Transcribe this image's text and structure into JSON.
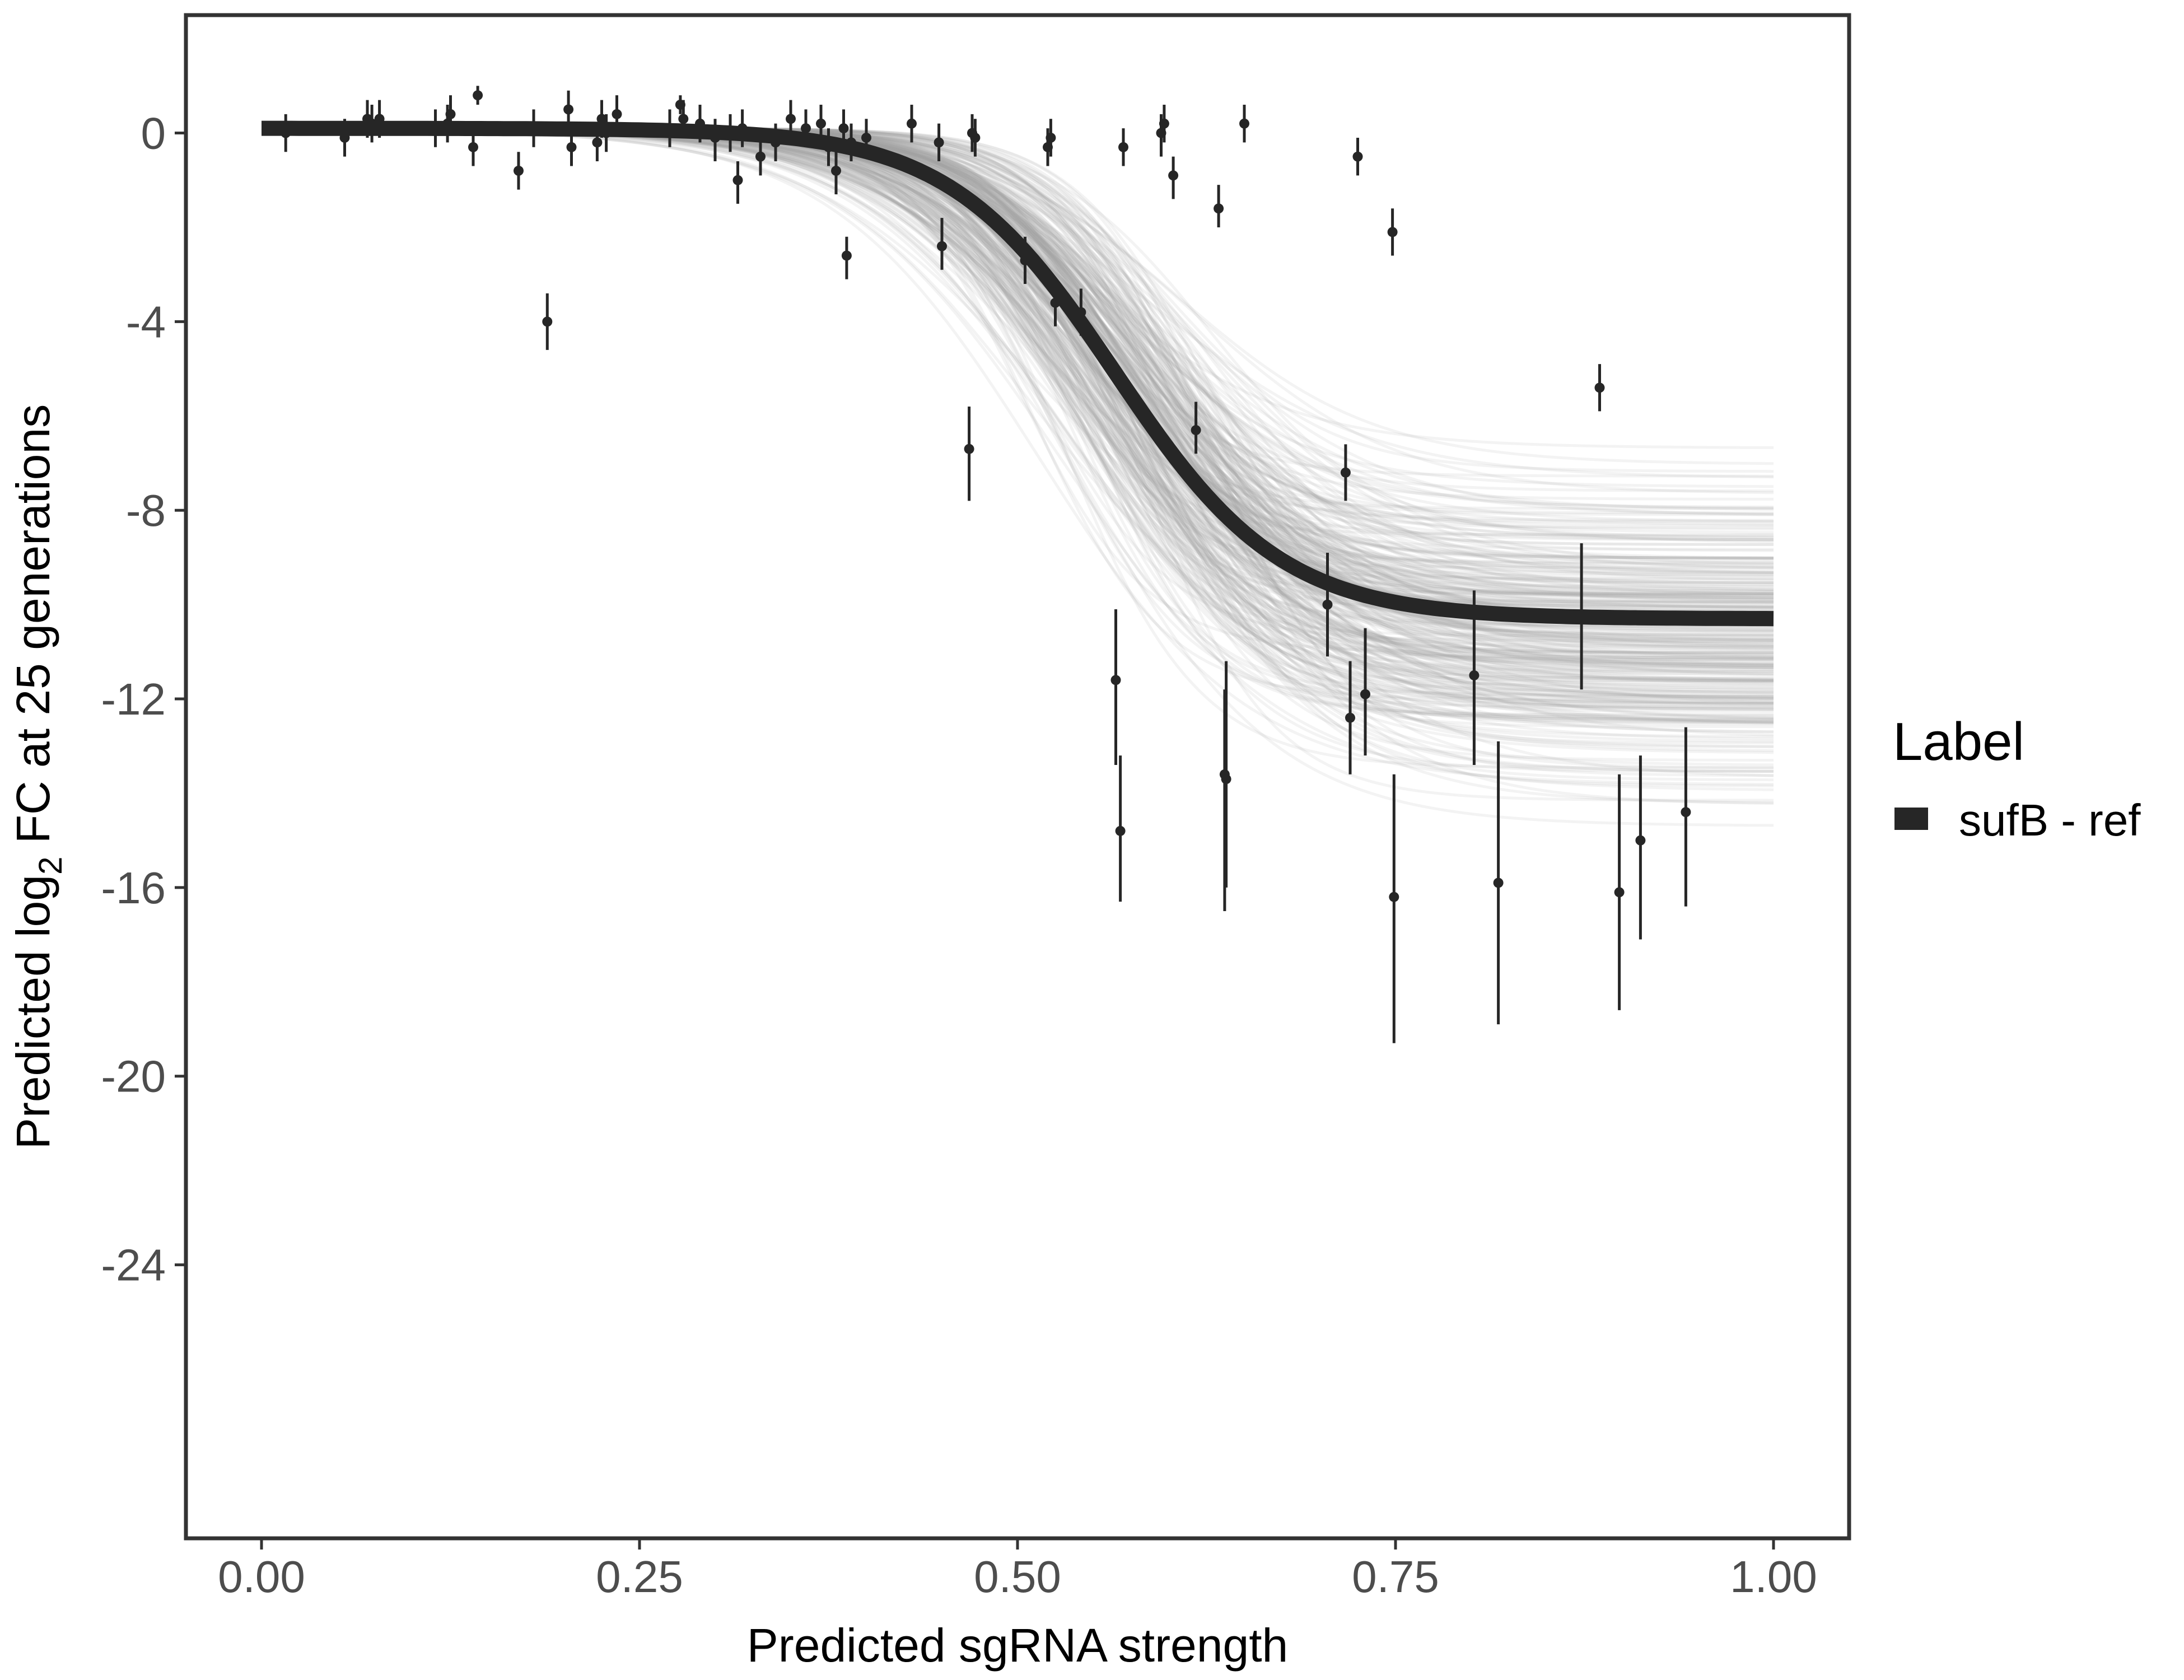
{
  "chart_data": {
    "type": "scatter",
    "title": "",
    "xlabel": "Predicted sgRNA strength",
    "ylabel": {
      "prefix": "Predicted  log",
      "subscript": "2",
      "suffix": " FC at 25 generations"
    },
    "xlim": [
      -0.05,
      1.05
    ],
    "ylim": [
      -29.8,
      2.5
    ],
    "x_ticks": [
      {
        "value": 0.0,
        "label": "0.00"
      },
      {
        "value": 0.25,
        "label": "0.25"
      },
      {
        "value": 0.5,
        "label": "0.50"
      },
      {
        "value": 0.75,
        "label": "0.75"
      },
      {
        "value": 1.0,
        "label": "1.00"
      }
    ],
    "y_ticks": [
      {
        "value": 0,
        "label": "0"
      },
      {
        "value": -4,
        "label": "-4"
      },
      {
        "value": -8,
        "label": "-8"
      },
      {
        "value": -12,
        "label": "-12"
      },
      {
        "value": -16,
        "label": "-16"
      },
      {
        "value": -20,
        "label": "-20"
      },
      {
        "value": -24,
        "label": "-24"
      }
    ],
    "grid": false,
    "legend": {
      "title": "Label",
      "placement": "right",
      "items": [
        {
          "label": "sufB - ref",
          "color": "#262626"
        }
      ]
    },
    "fit_curve": {
      "model": "logistic",
      "upper": 0.1,
      "lower": -10.3,
      "midpoint": 0.565,
      "scale": 0.055,
      "color": "#262626"
    },
    "posterior_draws": {
      "count": 320,
      "color": "#a6a6a6",
      "lower_range": [
        -15.3,
        -6.2
      ],
      "midpoint_range": [
        0.5,
        0.64
      ],
      "scale_range": [
        0.04,
        0.075
      ]
    },
    "points": [
      {
        "x": 0.016,
        "y": 0.0,
        "ylo": -0.4,
        "yhi": 0.4
      },
      {
        "x": 0.055,
        "y": -0.1,
        "ylo": -0.5,
        "yhi": 0.3
      },
      {
        "x": 0.07,
        "y": 0.3,
        "ylo": -0.1,
        "yhi": 0.7
      },
      {
        "x": 0.073,
        "y": 0.2,
        "ylo": -0.2,
        "yhi": 0.6
      },
      {
        "x": 0.078,
        "y": 0.3,
        "ylo": -0.1,
        "yhi": 0.7
      },
      {
        "x": 0.115,
        "y": 0.1,
        "ylo": -0.3,
        "yhi": 0.5
      },
      {
        "x": 0.123,
        "y": 0.2,
        "ylo": -0.2,
        "yhi": 0.6
      },
      {
        "x": 0.125,
        "y": 0.4,
        "ylo": 0.0,
        "yhi": 0.8
      },
      {
        "x": 0.14,
        "y": -0.3,
        "ylo": -0.7,
        "yhi": 0.1
      },
      {
        "x": 0.143,
        "y": 0.8,
        "ylo": 0.6,
        "yhi": 1.0
      },
      {
        "x": 0.17,
        "y": -0.8,
        "ylo": -1.2,
        "yhi": -0.4
      },
      {
        "x": 0.18,
        "y": 0.1,
        "ylo": -0.3,
        "yhi": 0.5
      },
      {
        "x": 0.189,
        "y": -4.0,
        "ylo": -4.6,
        "yhi": -3.4
      },
      {
        "x": 0.203,
        "y": 0.5,
        "ylo": 0.0,
        "yhi": 0.9
      },
      {
        "x": 0.205,
        "y": -0.3,
        "ylo": -0.7,
        "yhi": 0.1
      },
      {
        "x": 0.222,
        "y": -0.2,
        "ylo": -0.6,
        "yhi": 0.2
      },
      {
        "x": 0.225,
        "y": 0.3,
        "ylo": -0.1,
        "yhi": 0.7
      },
      {
        "x": 0.228,
        "y": 0.0,
        "ylo": -0.4,
        "yhi": 0.4
      },
      {
        "x": 0.235,
        "y": 0.4,
        "ylo": 0.0,
        "yhi": 0.8
      },
      {
        "x": 0.27,
        "y": 0.1,
        "ylo": -0.3,
        "yhi": 0.5
      },
      {
        "x": 0.277,
        "y": 0.6,
        "ylo": 0.4,
        "yhi": 0.8
      },
      {
        "x": 0.279,
        "y": 0.3,
        "ylo": -0.1,
        "yhi": 0.7
      },
      {
        "x": 0.29,
        "y": 0.2,
        "ylo": -0.2,
        "yhi": 0.6
      },
      {
        "x": 0.3,
        "y": -0.1,
        "ylo": -0.6,
        "yhi": 0.3
      },
      {
        "x": 0.31,
        "y": 0.0,
        "ylo": -0.4,
        "yhi": 0.4
      },
      {
        "x": 0.315,
        "y": -1.0,
        "ylo": -1.5,
        "yhi": -0.6
      },
      {
        "x": 0.318,
        "y": 0.1,
        "ylo": -0.3,
        "yhi": 0.5
      },
      {
        "x": 0.33,
        "y": -0.5,
        "ylo": -0.9,
        "yhi": -0.1
      },
      {
        "x": 0.34,
        "y": -0.2,
        "ylo": -0.6,
        "yhi": 0.2
      },
      {
        "x": 0.35,
        "y": 0.3,
        "ylo": -0.1,
        "yhi": 0.7
      },
      {
        "x": 0.36,
        "y": 0.1,
        "ylo": -0.3,
        "yhi": 0.5
      },
      {
        "x": 0.37,
        "y": 0.2,
        "ylo": -0.2,
        "yhi": 0.6
      },
      {
        "x": 0.375,
        "y": -0.3,
        "ylo": -0.7,
        "yhi": 0.1
      },
      {
        "x": 0.38,
        "y": -0.8,
        "ylo": -1.3,
        "yhi": -0.4
      },
      {
        "x": 0.385,
        "y": 0.1,
        "ylo": -0.3,
        "yhi": 0.5
      },
      {
        "x": 0.387,
        "y": -2.6,
        "ylo": -3.1,
        "yhi": -2.2
      },
      {
        "x": 0.39,
        "y": -0.2,
        "ylo": -0.6,
        "yhi": 0.2
      },
      {
        "x": 0.4,
        "y": -0.1,
        "ylo": -0.5,
        "yhi": 0.3
      },
      {
        "x": 0.43,
        "y": 0.2,
        "ylo": -0.2,
        "yhi": 0.6
      },
      {
        "x": 0.448,
        "y": -0.2,
        "ylo": -0.6,
        "yhi": 0.2
      },
      {
        "x": 0.45,
        "y": -2.4,
        "ylo": -2.9,
        "yhi": -1.8
      },
      {
        "x": 0.468,
        "y": -6.7,
        "ylo": -7.8,
        "yhi": -5.8
      },
      {
        "x": 0.47,
        "y": 0.0,
        "ylo": -0.4,
        "yhi": 0.4
      },
      {
        "x": 0.472,
        "y": -0.1,
        "ylo": -0.5,
        "yhi": 0.3
      },
      {
        "x": 0.505,
        "y": -2.7,
        "ylo": -3.2,
        "yhi": -2.2
      },
      {
        "x": 0.52,
        "y": -0.3,
        "ylo": -0.7,
        "yhi": 0.1
      },
      {
        "x": 0.522,
        "y": -0.1,
        "ylo": -0.5,
        "yhi": 0.3
      },
      {
        "x": 0.525,
        "y": -3.6,
        "ylo": -4.1,
        "yhi": -3.1
      },
      {
        "x": 0.542,
        "y": -3.8,
        "ylo": -4.3,
        "yhi": -3.3
      },
      {
        "x": 0.565,
        "y": -11.6,
        "ylo": -13.4,
        "yhi": -10.1
      },
      {
        "x": 0.568,
        "y": -14.8,
        "ylo": -16.3,
        "yhi": -13.2
      },
      {
        "x": 0.57,
        "y": -0.3,
        "ylo": -0.7,
        "yhi": 0.1
      },
      {
        "x": 0.595,
        "y": 0.0,
        "ylo": -0.5,
        "yhi": 0.4
      },
      {
        "x": 0.597,
        "y": 0.2,
        "ylo": -0.2,
        "yhi": 0.6
      },
      {
        "x": 0.603,
        "y": -0.9,
        "ylo": -1.4,
        "yhi": -0.5
      },
      {
        "x": 0.618,
        "y": -6.3,
        "ylo": -6.8,
        "yhi": -5.7
      },
      {
        "x": 0.633,
        "y": -1.6,
        "ylo": -2.0,
        "yhi": -1.1
      },
      {
        "x": 0.637,
        "y": -13.6,
        "ylo": -16.5,
        "yhi": -11.8
      },
      {
        "x": 0.638,
        "y": -13.7,
        "ylo": -16.0,
        "yhi": -11.2
      },
      {
        "x": 0.65,
        "y": 0.2,
        "ylo": -0.2,
        "yhi": 0.6
      },
      {
        "x": 0.705,
        "y": -10.0,
        "ylo": -11.1,
        "yhi": -8.9
      },
      {
        "x": 0.717,
        "y": -7.2,
        "ylo": -7.8,
        "yhi": -6.6
      },
      {
        "x": 0.72,
        "y": -12.4,
        "ylo": -13.6,
        "yhi": -11.2
      },
      {
        "x": 0.725,
        "y": -0.5,
        "ylo": -0.9,
        "yhi": -0.1
      },
      {
        "x": 0.73,
        "y": -11.9,
        "ylo": -13.2,
        "yhi": -10.5
      },
      {
        "x": 0.748,
        "y": -2.1,
        "ylo": -2.6,
        "yhi": -1.6
      },
      {
        "x": 0.749,
        "y": -16.2,
        "ylo": -19.3,
        "yhi": -13.6
      },
      {
        "x": 0.802,
        "y": -11.5,
        "ylo": -13.4,
        "yhi": -9.7
      },
      {
        "x": 0.818,
        "y": -15.9,
        "ylo": -18.9,
        "yhi": -12.9
      },
      {
        "x": 0.873,
        "y": -10.3,
        "ylo": -11.8,
        "yhi": -8.7
      },
      {
        "x": 0.885,
        "y": -5.4,
        "ylo": -5.9,
        "yhi": -4.9
      },
      {
        "x": 0.898,
        "y": -16.1,
        "ylo": -18.6,
        "yhi": -13.6
      },
      {
        "x": 0.912,
        "y": -15.0,
        "ylo": -17.1,
        "yhi": -13.2
      },
      {
        "x": 0.942,
        "y": -14.4,
        "ylo": -16.4,
        "yhi": -12.6
      }
    ]
  }
}
